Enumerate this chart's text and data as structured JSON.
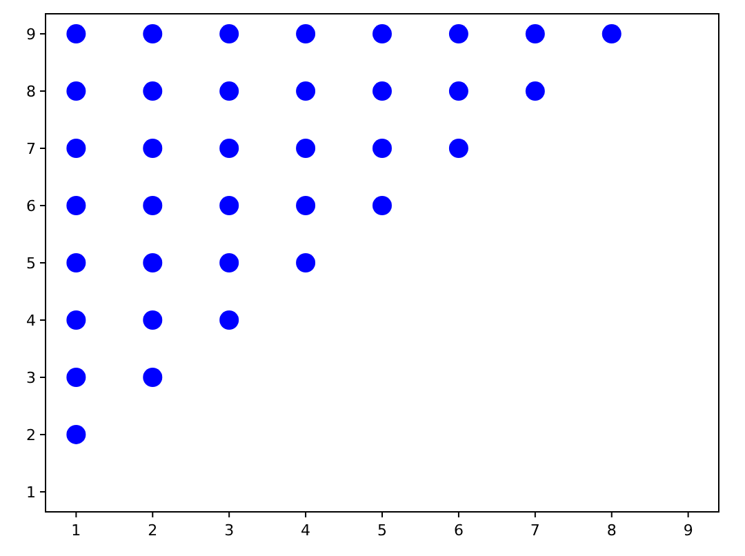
{
  "chart_data": {
    "type": "scatter",
    "x": [
      1,
      1,
      1,
      1,
      1,
      1,
      1,
      1,
      2,
      2,
      2,
      2,
      2,
      2,
      2,
      3,
      3,
      3,
      3,
      3,
      3,
      4,
      4,
      4,
      4,
      4,
      5,
      5,
      5,
      5,
      6,
      6,
      6,
      7,
      7,
      8
    ],
    "values": [
      2,
      3,
      4,
      5,
      6,
      7,
      8,
      9,
      3,
      4,
      5,
      6,
      7,
      8,
      9,
      4,
      5,
      6,
      7,
      8,
      9,
      5,
      6,
      7,
      8,
      9,
      6,
      7,
      8,
      9,
      7,
      8,
      9,
      8,
      9,
      9
    ],
    "color": "#0000ff",
    "marker": "circle",
    "xlim": [
      0.6,
      9.4
    ],
    "ylim": [
      0.65,
      9.35
    ],
    "xticks": [
      1,
      2,
      3,
      4,
      5,
      6,
      7,
      8,
      9
    ],
    "yticks": [
      1,
      2,
      3,
      4,
      5,
      6,
      7,
      8,
      9
    ],
    "grid": false
  }
}
